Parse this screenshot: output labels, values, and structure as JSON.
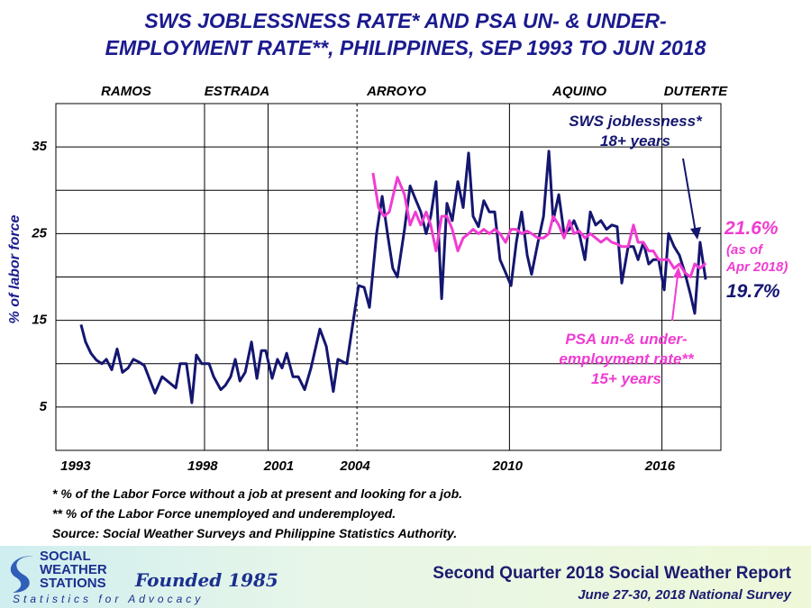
{
  "chart_data": {
    "type": "line",
    "title": "SWS JOBLESSNESS RATE* AND PSA UN- & UNDER-\nEMPLOYMENT RATE**, PHILIPPINES, SEP 1993 TO JUN 2018",
    "ylabel": "% of labor force",
    "ylim": [
      0,
      40
    ],
    "yticks": [
      5,
      15,
      25,
      35
    ],
    "minor_yticks": [
      10,
      20,
      30
    ],
    "xlim": [
      1992.65,
      2018.82
    ],
    "xticks": [
      1993,
      1998,
      2001,
      2004,
      2010,
      2016
    ],
    "period_lines": [
      {
        "x": 1998.5,
        "style": "solid"
      },
      {
        "x": 2001,
        "style": "solid"
      },
      {
        "x": 2004.5,
        "style": "dashed"
      },
      {
        "x": 2010.5,
        "style": "solid"
      },
      {
        "x": 2016.5,
        "style": "solid"
      }
    ],
    "presidents": [
      "RAMOS",
      "ESTRADA",
      "ARROYO",
      "AQUINO",
      "DUTERTE"
    ],
    "grid": true,
    "series": [
      {
        "name": "SWS joblessness*\n18+ years",
        "color": "#141670",
        "last_value_label": "19.7%",
        "x": [
          1993.64,
          1993.82,
          1994.03,
          1994.25,
          1994.46,
          1994.64,
          1994.85,
          1995.06,
          1995.27,
          1995.49,
          1995.7,
          1995.91,
          1996.13,
          1996.55,
          1996.83,
          1997.37,
          1997.54,
          1997.79,
          1998.0,
          1998.18,
          1998.39,
          1998.68,
          1998.86,
          1999.14,
          1999.32,
          1999.53,
          1999.71,
          1999.89,
          2000.1,
          2000.35,
          2000.56,
          2000.74,
          2000.91,
          2001.16,
          2001.37,
          2001.55,
          2001.73,
          2001.98,
          2002.19,
          2002.44,
          2002.69,
          2003.04,
          2003.29,
          2003.57,
          2003.75,
          2004.1,
          2004.56,
          2004.78,
          2004.99,
          2005.27,
          2005.49,
          2005.7,
          2005.91,
          2006.09,
          2006.37,
          2006.59,
          2006.8,
          2007.01,
          2007.22,
          2007.4,
          2007.61,
          2007.83,
          2008.04,
          2008.25,
          2008.47,
          2008.68,
          2008.89,
          2009.07,
          2009.28,
          2009.49,
          2009.71,
          2009.92,
          2010.13,
          2010.35,
          2010.56,
          2010.77,
          2010.98,
          2011.2,
          2011.37,
          2011.62,
          2011.84,
          2012.05,
          2012.22,
          2012.44,
          2012.65,
          2012.86,
          2013.04,
          2013.25,
          2013.47,
          2013.68,
          2013.89,
          2014.1,
          2014.32,
          2014.53,
          2014.74,
          2014.92,
          2015.17,
          2015.38,
          2015.56,
          2015.77,
          2015.98,
          2016.16,
          2016.37,
          2016.59,
          2016.76,
          2016.98,
          2017.19,
          2017.4,
          2017.62,
          2017.79,
          2018.0,
          2018.22
        ],
        "values": [
          14.5,
          12.5,
          11.2,
          10.4,
          10.0,
          10.5,
          9.3,
          11.7,
          9.0,
          9.5,
          10.5,
          10.2,
          9.8,
          6.6,
          8.5,
          7.2,
          10.0,
          10.0,
          5.5,
          11.0,
          10.0,
          10.0,
          8.5,
          7.0,
          7.5,
          8.5,
          10.5,
          8.0,
          9.0,
          12.5,
          8.3,
          11.5,
          11.5,
          8.3,
          10.5,
          9.5,
          11.2,
          8.5,
          8.5,
          7.0,
          9.5,
          14.0,
          12.0,
          6.8,
          10.5,
          10.0,
          19.0,
          18.8,
          16.5,
          25.0,
          29.3,
          25.0,
          21.0,
          20.0,
          25.5,
          30.5,
          29.0,
          27.5,
          25.0,
          27.0,
          31.0,
          17.5,
          28.5,
          26.5,
          31.0,
          28.0,
          34.3,
          27.0,
          25.8,
          28.8,
          27.5,
          27.5,
          22.0,
          20.5,
          19.0,
          24.0,
          27.5,
          22.5,
          20.3,
          24.0,
          27.0,
          34.5,
          26.5,
          29.5,
          25.0,
          25.5,
          26.5,
          25.0,
          22.0,
          27.5,
          26.0,
          26.5,
          25.5,
          26.0,
          25.8,
          19.3,
          23.5,
          23.5,
          22.0,
          24.0,
          21.5,
          22.0,
          22.0,
          18.5,
          25.0,
          23.5,
          22.5,
          20.5,
          18.0,
          15.8,
          24.0,
          19.7
        ]
      },
      {
        "name": "PSA un-& under-\nemployment rate**\n15+ years",
        "color": "#f03cd2",
        "last_value_label": "21.6%",
        "note": "(as of\nApr 2018)",
        "x": [
          2005.13,
          2005.35,
          2005.56,
          2005.77,
          2006.09,
          2006.37,
          2006.59,
          2006.8,
          2007.01,
          2007.22,
          2007.4,
          2007.61,
          2007.83,
          2008.04,
          2008.25,
          2008.47,
          2008.68,
          2008.89,
          2009.07,
          2009.28,
          2009.49,
          2009.71,
          2009.92,
          2010.13,
          2010.35,
          2010.56,
          2010.77,
          2010.98,
          2011.2,
          2011.37,
          2011.62,
          2011.84,
          2012.05,
          2012.22,
          2012.44,
          2012.65,
          2012.86,
          2013.04,
          2013.25,
          2013.47,
          2013.68,
          2013.89,
          2014.1,
          2014.32,
          2014.53,
          2014.74,
          2014.92,
          2015.17,
          2015.38,
          2015.56,
          2015.77,
          2015.98,
          2016.16,
          2016.37,
          2016.59,
          2016.76,
          2016.98,
          2017.19,
          2017.4,
          2017.62,
          2017.79,
          2018.0,
          2018.22
        ],
        "values": [
          32.0,
          28.0,
          27.0,
          27.5,
          31.5,
          29.5,
          26.0,
          27.5,
          26.0,
          27.5,
          26.0,
          23.0,
          27.0,
          27.0,
          25.5,
          23.0,
          24.5,
          25.0,
          25.5,
          25.0,
          25.5,
          25.0,
          25.5,
          25.0,
          24.0,
          25.5,
          25.5,
          25.0,
          25.3,
          25.0,
          24.5,
          24.5,
          25.0,
          27.0,
          26.0,
          24.5,
          26.5,
          25.0,
          25.3,
          24.5,
          25.0,
          24.5,
          24.0,
          24.5,
          24.0,
          23.8,
          23.5,
          23.5,
          26.0,
          24.0,
          24.0,
          23.0,
          23.0,
          22.0,
          22.0,
          22.0,
          21.0,
          21.5,
          20.5,
          20.0,
          21.5,
          21.0,
          21.6
        ]
      }
    ],
    "footnotes": [
      "* % of the Labor Force without a job at present and looking for a job.",
      "** % of the Labor Force unemployed and underemployed.",
      "Source: Social Weather Surveys and Philippine Statistics Authority."
    ]
  },
  "footer": {
    "logo": [
      "SOCIAL",
      "WEATHER",
      "STATIONS"
    ],
    "founded": "Founded 1985",
    "motto": "Statistics for Advocacy",
    "report": "Second Quarter 2018 Social Weather Report",
    "survey": "June 27-30, 2018 National Survey"
  }
}
